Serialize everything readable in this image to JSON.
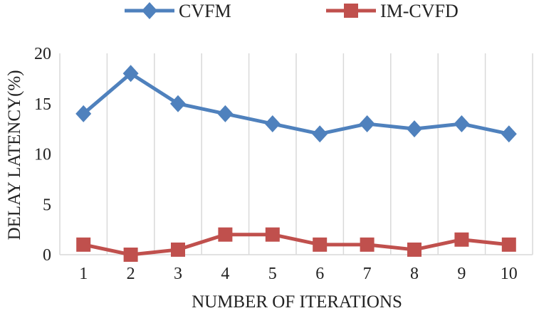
{
  "chart_data": {
    "type": "line",
    "title": "",
    "xlabel": "NUMBER OF ITERATIONS",
    "ylabel": "DELAY LATENCY(%)",
    "categories": [
      "1",
      "2",
      "3",
      "4",
      "5",
      "6",
      "7",
      "8",
      "9",
      "10"
    ],
    "ylim": [
      0,
      20
    ],
    "yticks": [
      0,
      5,
      10,
      15,
      20
    ],
    "grid": "vertical",
    "legend_position": "top",
    "series": [
      {
        "name": "CVFM",
        "color": "#4F81BD",
        "marker": "diamond",
        "values": [
          14,
          18,
          15,
          14,
          13,
          12,
          13,
          12.5,
          13,
          12
        ]
      },
      {
        "name": "IM-CVFD",
        "color": "#C0504D",
        "marker": "square",
        "values": [
          1,
          0,
          0.5,
          2,
          2,
          1,
          1,
          0.5,
          1.5,
          1
        ]
      }
    ]
  }
}
